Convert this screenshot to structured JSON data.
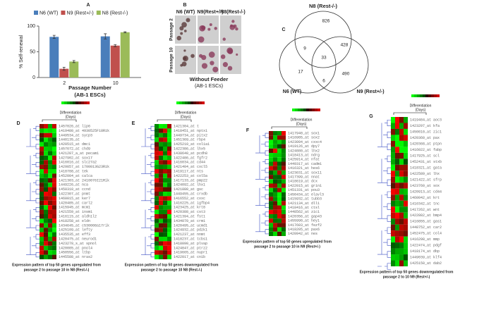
{
  "bar_panel": {
    "label": "A",
    "chart_data": {
      "type": "bar",
      "ylabel": "% Self-renewal",
      "xlabel": "Passage Number",
      "xsublabel": "(AB-1 ESCs)",
      "categories": [
        "2",
        "10"
      ],
      "ylim": [
        0,
        100
      ],
      "yticks": [
        0,
        50,
        100
      ],
      "series": [
        {
          "name": "N6 (WT)",
          "color": "#4a7ebb",
          "values": [
            79,
            80
          ],
          "errors": [
            3,
            5
          ]
        },
        {
          "name": "N9 (Rest+/-)",
          "color": "#c0504d",
          "values": [
            17,
            62
          ],
          "errors": [
            3,
            2
          ]
        },
        {
          "name": "N8 (Rest-/-)",
          "color": "#9bbb59",
          "values": [
            31,
            88
          ],
          "errors": [
            2,
            1
          ]
        }
      ]
    }
  },
  "image_panel": {
    "label": "B",
    "columns": [
      "N6 (WT)",
      "N9(Rest+/-)",
      "N8(Rest-/-)"
    ],
    "rows": [
      "Passage 2",
      "Passage 10"
    ],
    "caption": "Without Feeder",
    "subcaption": "(AB-1 ESCs)"
  },
  "venn_panel": {
    "label": "C",
    "sets": [
      "N8 (Rest-/-)",
      "N6 (WT)",
      "N9 (Rest+/-)"
    ],
    "regions": {
      "top": "826",
      "top_left": "9",
      "top_right": "428",
      "center": "33",
      "left": "17",
      "bottom": "6",
      "right": "490"
    }
  },
  "heatmaps": [
    {
      "label": "D",
      "header": "Differentiation",
      "header2": "(Days)",
      "genes": [
        "1457026_at lip6",
        "1419480_at 4930525F18Rik",
        "1449534_at sycp3",
        "1440135_at",
        "1420515_at dmc1",
        "1457672_at chd9",
        "1421287_a_at pecam1",
        "1427902_at sox17",
        "1416016_at slc27a2",
        "1429857_at 1700013G23Rik",
        "1418788_at tek",
        "1452004_at calca",
        "1421303_at 2410076I21Rik",
        "1449226_at nca",
        "1450310_at ccnd",
        "1422307_at pnmt",
        "1460015_at ker7",
        "1420485_at carl2",
        "1415945_at mcm1",
        "1421559_at insm1",
        "1416115_at aldh1l2",
        "1418258_at eldn",
        "1434645_at c530008a17rik",
        "1425109_at lefty",
        "1435535_at eff3",
        "1420475_at neurod1",
        "1423278_s_at spnol",
        "1420085_at pnol4",
        "1450556_at ltbp",
        "1445588_at nras2"
      ],
      "caption_lines": [
        "Expression pattern of top 50 genes upregulated from",
        "passage 2 to passage 10 in N8 (Rest-/-)"
      ]
    },
    {
      "label": "E",
      "header": "Differentiation",
      "header2": "(Days)",
      "genes": [
        "1421304_at t",
        "1418451_at nptx1",
        "1449734_at pitx2",
        "1451369_at rbp4",
        "1425210_at col1a1",
        "1422386_at lhx5",
        "1438640_at pcdh8",
        "1422486_at fgfr2",
        "1416034_at cd44",
        "1421404_at cxcl5",
        "1419117_at nts",
        "1422253_at col5a",
        "1417133_at pmp22",
        "1424092_at lhx1",
        "1421880_at gsc",
        "1449455_at crxdb",
        "1416552_at cxxc",
        "1416225_at igfbp4",
        "1423425_at krt8",
        "1420388_at cst3",
        "1421394_at fst1",
        "1434070_at crm1",
        "1420495_at ucmd1",
        "1424932_at pdzk1",
        "1421237_at nnmt",
        "1418237_at tcbs1",
        "1418090_at plvap",
        "1424847_at ptrz2",
        "1419665_at nupr1",
        "1422017_at cn1b"
      ],
      "caption_lines": [
        "Expression pattern of top 50 genes downregulated from",
        "passage 2 to passage 10 N8 (Rest-/-)"
      ]
    },
    {
      "label": "F",
      "header": "Differentiation",
      "header2": "(Days)",
      "genes": [
        "1417940_at sox1",
        "1416985_at sox2",
        "1423094_at cxxc4",
        "1419126_at dpy7",
        "1424880_at lhx2",
        "1418413_at ndrg",
        "1425914_at nfat",
        "1449317_at cadm1",
        "1416321_at hes6",
        "1423631_at sox11",
        "1417399_at nnat",
        "1418619_at dcx",
        "1422015_at grin1",
        "1451331_at pou3",
        "1450434_at elavl3",
        "1415932_at tubb3",
        "1421134_at dll1",
        "1418416_at ctsl",
        "1448562_at zic1",
        "1420356_at gap43",
        "1455990_at hey1",
        "1417603_at fezf2",
        "1418205_at pax6",
        "1420942_at nes"
      ],
      "caption_lines": [
        "Expression pattern of top 50 genes upregulated from",
        "passage 2 to passage 10 in N9 (Rest+/-)"
      ]
    },
    {
      "label": "G",
      "header": "Differentiation",
      "header2": "(Days)",
      "genes": [
        "1419484_at aoc3",
        "1423297_at kfa",
        "1450010_at zic1",
        "1420360_at pax",
        "1420368_at ptpn",
        "1416022_at fabp",
        "1417925_at scl",
        "1452431_at stxb",
        "1418321_at gata",
        "1422589_at lhx",
        "1421422_at sfrp",
        "1423760_at sox",
        "1420913_at cd44",
        "1460042_at krt",
        "1416342_at tnc",
        "1417262_at wnt",
        "1422882_at bmp4",
        "1416855_at gas1",
        "1448752_at car2",
        "1452475_at col4",
        "1416298_at mmp",
        "1422474_at pdgf",
        "1418174_at dbp",
        "1449039_at klf4",
        "1425150_at dab2"
      ],
      "caption_lines": [
        "Expression pattern of top 50 genes downregulated from",
        "passage 2 to 10 N9 (Rest+/-)"
      ]
    }
  ]
}
